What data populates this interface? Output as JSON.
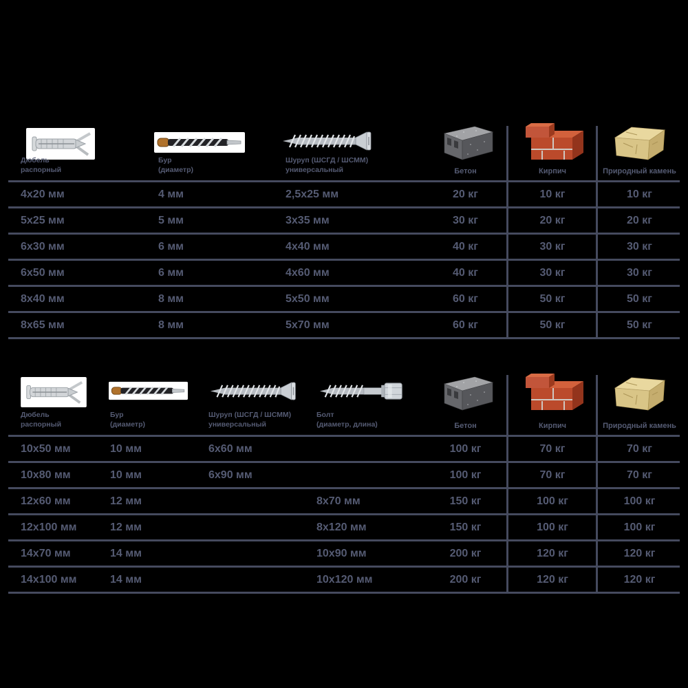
{
  "colors": {
    "background": "#000000",
    "grid_line": "#454a5e",
    "text": "#555b73",
    "photo_background": "#ffffff",
    "brick": "#bb4a2b",
    "concrete": "#66676b",
    "stone": "#d9c587"
  },
  "units": {
    "size": "мм",
    "load": "кг"
  },
  "chart_data": [
    {
      "type": "table",
      "fastener_columns": [
        {
          "icon": "dowel",
          "line1": "Дюбель",
          "line2": "распорный"
        },
        {
          "icon": "drill-bit",
          "line1": "Бур",
          "line2": "(диаметр)"
        },
        {
          "icon": "screw",
          "line1": "Шуруп (ШСГД / ШСММ)",
          "line2": "универсальный"
        }
      ],
      "material_columns": [
        {
          "icon": "concrete-block",
          "label": "Бетон"
        },
        {
          "icon": "bricks",
          "label": "Кирпич"
        },
        {
          "icon": "stone",
          "label": "Природный камень"
        }
      ],
      "rows": [
        [
          "4x20 мм",
          "4 мм",
          "2,5x25 мм",
          "20 кг",
          "10 кг",
          "10 кг"
        ],
        [
          "5x25 мм",
          "5 мм",
          "3x35 мм",
          "30 кг",
          "20 кг",
          "20 кг"
        ],
        [
          "6x30 мм",
          "6 мм",
          "4x40 мм",
          "40 кг",
          "30 кг",
          "30 кг"
        ],
        [
          "6x50 мм",
          "6 мм",
          "4x60 мм",
          "40 кг",
          "30 кг",
          "30 кг"
        ],
        [
          "8x40 мм",
          "8 мм",
          "5x50 мм",
          "60 кг",
          "50 кг",
          "50 кг"
        ],
        [
          "8x65 мм",
          "8 мм",
          "5x70 мм",
          "60 кг",
          "50 кг",
          "50 кг"
        ]
      ]
    },
    {
      "type": "table",
      "fastener_columns": [
        {
          "icon": "dowel",
          "line1": "Дюбель",
          "line2": "распорный"
        },
        {
          "icon": "drill-bit",
          "line1": "Бур",
          "line2": "(диаметр)"
        },
        {
          "icon": "screw",
          "line1": "Шуруп (ШСГД / ШСММ)",
          "line2": "универсальный"
        },
        {
          "icon": "lag-bolt",
          "line1": "Болт",
          "line2": "(диаметр, длина)"
        }
      ],
      "material_columns": [
        {
          "icon": "concrete-block",
          "label": "Бетон"
        },
        {
          "icon": "bricks",
          "label": "Кирпич"
        },
        {
          "icon": "stone",
          "label": "Природный камень"
        }
      ],
      "rows": [
        [
          "10x50 мм",
          "10 мм",
          "6x60 мм",
          "",
          "100 кг",
          "70 кг",
          "70 кг"
        ],
        [
          "10x80 мм",
          "10 мм",
          "6x90 мм",
          "",
          "100 кг",
          "70 кг",
          "70 кг"
        ],
        [
          "12x60 мм",
          "12 мм",
          "",
          "8x70 мм",
          "150 кг",
          "100 кг",
          "100 кг"
        ],
        [
          "12x100 мм",
          "12 мм",
          "",
          "8x120 мм",
          "150 кг",
          "100 кг",
          "100 кг"
        ],
        [
          "14x70 мм",
          "14 мм",
          "",
          "10x90 мм",
          "200 кг",
          "120 кг",
          "120 кг"
        ],
        [
          "14x100 мм",
          "14 мм",
          "",
          "10x120 мм",
          "200 кг",
          "120 кг",
          "120 кг"
        ]
      ]
    }
  ]
}
